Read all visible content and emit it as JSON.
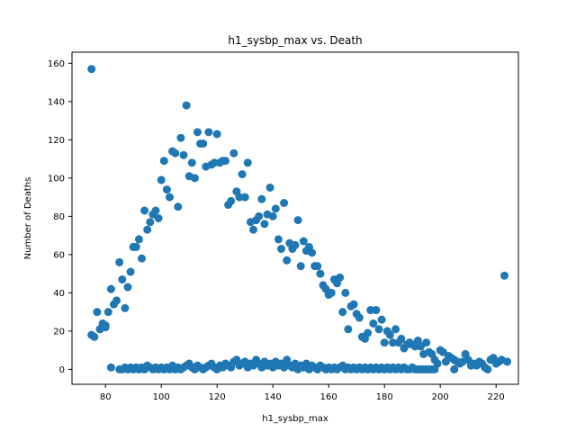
{
  "chart_data": {
    "type": "scatter",
    "title": "h1_sysbp_max vs. Death",
    "xlabel": "h1_sysbp_max",
    "ylabel": "Number of Deaths",
    "xlim": [
      68,
      228
    ],
    "ylim": [
      -7.8,
      165.8
    ],
    "xticks": [
      80,
      100,
      120,
      140,
      160,
      180,
      200,
      220
    ],
    "yticks": [
      0,
      20,
      40,
      60,
      80,
      100,
      120,
      140,
      160
    ],
    "grid": false,
    "legend": "none",
    "marker_color": "#1f77b4",
    "series": [
      {
        "points": [
          [
            75,
            157
          ],
          [
            75,
            18
          ],
          [
            76,
            17
          ],
          [
            77,
            30
          ],
          [
            78,
            21
          ],
          [
            79,
            24
          ],
          [
            80,
            22
          ],
          [
            80,
            23
          ],
          [
            81,
            30
          ],
          [
            82,
            42
          ],
          [
            83,
            34
          ],
          [
            84,
            36
          ],
          [
            85,
            56
          ],
          [
            86,
            47
          ],
          [
            87,
            32
          ],
          [
            88,
            43
          ],
          [
            89,
            51
          ],
          [
            90,
            64
          ],
          [
            91,
            64
          ],
          [
            92,
            68
          ],
          [
            93,
            58
          ],
          [
            94,
            83
          ],
          [
            95,
            73
          ],
          [
            96,
            77
          ],
          [
            97,
            81
          ],
          [
            98,
            83
          ],
          [
            99,
            79
          ],
          [
            100,
            99
          ],
          [
            101,
            109
          ],
          [
            102,
            94
          ],
          [
            103,
            90
          ],
          [
            104,
            114
          ],
          [
            105,
            113
          ],
          [
            106,
            85
          ],
          [
            107,
            121
          ],
          [
            108,
            112
          ],
          [
            109,
            138
          ],
          [
            110,
            101
          ],
          [
            111,
            108
          ],
          [
            112,
            100
          ],
          [
            113,
            124
          ],
          [
            114,
            118
          ],
          [
            115,
            118
          ],
          [
            116,
            106
          ],
          [
            117,
            124
          ],
          [
            118,
            107
          ],
          [
            119,
            108
          ],
          [
            120,
            123
          ],
          [
            121,
            108
          ],
          [
            122,
            109
          ],
          [
            123,
            109
          ],
          [
            124,
            86
          ],
          [
            125,
            88
          ],
          [
            126,
            113
          ],
          [
            127,
            93
          ],
          [
            128,
            90
          ],
          [
            129,
            102
          ],
          [
            130,
            90
          ],
          [
            131,
            108
          ],
          [
            132,
            77
          ],
          [
            133,
            73
          ],
          [
            134,
            78
          ],
          [
            135,
            80
          ],
          [
            136,
            89
          ],
          [
            137,
            76
          ],
          [
            138,
            81
          ],
          [
            139,
            95
          ],
          [
            140,
            80
          ],
          [
            141,
            84
          ],
          [
            142,
            68
          ],
          [
            143,
            63
          ],
          [
            144,
            87
          ],
          [
            145,
            57
          ],
          [
            146,
            66
          ],
          [
            147,
            63
          ],
          [
            148,
            65
          ],
          [
            149,
            78
          ],
          [
            150,
            54
          ],
          [
            151,
            67
          ],
          [
            152,
            62
          ],
          [
            153,
            64
          ],
          [
            154,
            61
          ],
          [
            155,
            54
          ],
          [
            156,
            54
          ],
          [
            157,
            50
          ],
          [
            158,
            44
          ],
          [
            159,
            42
          ],
          [
            160,
            39
          ],
          [
            161,
            40
          ],
          [
            162,
            47
          ],
          [
            163,
            45
          ],
          [
            164,
            48
          ],
          [
            165,
            30
          ],
          [
            166,
            40
          ],
          [
            167,
            21
          ],
          [
            168,
            33
          ],
          [
            169,
            34
          ],
          [
            170,
            29
          ],
          [
            171,
            27
          ],
          [
            172,
            17
          ],
          [
            173,
            16
          ],
          [
            174,
            19
          ],
          [
            175,
            31
          ],
          [
            176,
            24
          ],
          [
            177,
            31
          ],
          [
            178,
            21
          ],
          [
            179,
            26
          ],
          [
            180,
            14
          ],
          [
            181,
            20
          ],
          [
            182,
            18
          ],
          [
            183,
            14
          ],
          [
            184,
            21
          ],
          [
            185,
            14
          ],
          [
            186,
            16
          ],
          [
            187,
            11
          ],
          [
            188,
            13
          ],
          [
            189,
            14
          ],
          [
            190,
            13
          ],
          [
            191,
            12
          ],
          [
            192,
            15
          ],
          [
            193,
            12
          ],
          [
            194,
            8
          ],
          [
            195,
            14
          ],
          [
            196,
            9
          ],
          [
            197,
            8
          ],
          [
            198,
            5
          ],
          [
            199,
            3
          ],
          [
            200,
            10
          ],
          [
            201,
            9
          ],
          [
            202,
            4
          ],
          [
            203,
            7
          ],
          [
            204,
            6
          ],
          [
            205,
            5
          ],
          [
            206,
            4
          ],
          [
            207,
            3
          ],
          [
            208,
            4
          ],
          [
            209,
            8
          ],
          [
            210,
            5
          ],
          [
            211,
            2
          ],
          [
            212,
            3
          ],
          [
            213,
            2
          ],
          [
            214,
            4
          ],
          [
            215,
            3
          ],
          [
            216,
            1
          ],
          [
            217,
            0
          ],
          [
            218,
            5
          ],
          [
            219,
            6
          ],
          [
            220,
            3
          ],
          [
            221,
            4
          ],
          [
            222,
            5
          ],
          [
            223,
            49
          ],
          [
            224,
            4
          ],
          [
            82,
            1
          ],
          [
            85,
            0
          ],
          [
            86,
            0
          ],
          [
            87,
            1
          ],
          [
            88,
            0
          ],
          [
            89,
            1
          ],
          [
            90,
            0
          ],
          [
            91,
            1
          ],
          [
            92,
            0
          ],
          [
            93,
            1
          ],
          [
            94,
            0
          ],
          [
            95,
            2
          ],
          [
            96,
            1
          ],
          [
            97,
            0
          ],
          [
            98,
            1
          ],
          [
            99,
            0
          ],
          [
            100,
            1
          ],
          [
            101,
            0
          ],
          [
            102,
            1
          ],
          [
            103,
            0
          ],
          [
            104,
            2
          ],
          [
            105,
            0
          ],
          [
            106,
            1
          ],
          [
            107,
            0
          ],
          [
            108,
            1
          ],
          [
            109,
            2
          ],
          [
            110,
            3
          ],
          [
            111,
            1
          ],
          [
            112,
            0
          ],
          [
            113,
            2
          ],
          [
            114,
            1
          ],
          [
            115,
            0
          ],
          [
            116,
            1
          ],
          [
            117,
            2
          ],
          [
            118,
            3
          ],
          [
            119,
            1
          ],
          [
            120,
            0
          ],
          [
            121,
            2
          ],
          [
            122,
            1
          ],
          [
            123,
            3
          ],
          [
            124,
            2
          ],
          [
            125,
            1
          ],
          [
            126,
            4
          ],
          [
            127,
            5
          ],
          [
            128,
            2
          ],
          [
            129,
            3
          ],
          [
            130,
            4
          ],
          [
            131,
            1
          ],
          [
            132,
            3
          ],
          [
            133,
            2
          ],
          [
            134,
            5
          ],
          [
            135,
            3
          ],
          [
            136,
            1
          ],
          [
            137,
            4
          ],
          [
            138,
            2
          ],
          [
            139,
            3
          ],
          [
            140,
            1
          ],
          [
            141,
            4
          ],
          [
            142,
            2
          ],
          [
            143,
            3
          ],
          [
            144,
            1
          ],
          [
            145,
            5
          ],
          [
            146,
            2
          ],
          [
            147,
            1
          ],
          [
            148,
            3
          ],
          [
            149,
            0
          ],
          [
            150,
            2
          ],
          [
            151,
            1
          ],
          [
            152,
            3
          ],
          [
            153,
            0
          ],
          [
            154,
            2
          ],
          [
            155,
            1
          ],
          [
            156,
            0
          ],
          [
            157,
            2
          ],
          [
            158,
            1
          ],
          [
            159,
            0
          ],
          [
            160,
            1
          ],
          [
            161,
            0
          ],
          [
            162,
            1
          ],
          [
            163,
            0
          ],
          [
            164,
            1
          ],
          [
            165,
            2
          ],
          [
            166,
            0
          ],
          [
            167,
            1
          ],
          [
            168,
            0
          ],
          [
            169,
            1
          ],
          [
            170,
            0
          ],
          [
            171,
            1
          ],
          [
            172,
            0
          ],
          [
            173,
            1
          ],
          [
            174,
            0
          ],
          [
            175,
            1
          ],
          [
            176,
            0
          ],
          [
            177,
            1
          ],
          [
            178,
            0
          ],
          [
            179,
            1
          ],
          [
            180,
            0
          ],
          [
            181,
            1
          ],
          [
            182,
            0
          ],
          [
            183,
            1
          ],
          [
            184,
            0
          ],
          [
            185,
            1
          ],
          [
            186,
            0
          ],
          [
            187,
            1
          ],
          [
            188,
            0
          ],
          [
            189,
            0
          ],
          [
            190,
            1
          ],
          [
            191,
            0
          ],
          [
            192,
            0
          ],
          [
            193,
            0
          ],
          [
            194,
            0
          ],
          [
            195,
            0
          ],
          [
            196,
            0
          ],
          [
            197,
            0
          ],
          [
            198,
            0
          ],
          [
            205,
            0
          ]
        ]
      }
    ]
  }
}
